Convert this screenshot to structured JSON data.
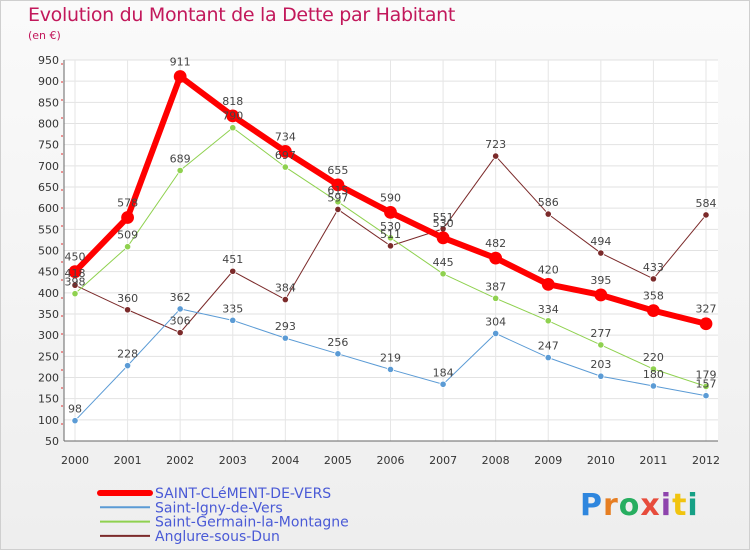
{
  "header": {
    "title": "Evolution du Montant de la Dette par Habitant",
    "unit": "(en €)"
  },
  "logo": {
    "text": "Proxiti",
    "colors": [
      "#2e86de",
      "#e67e22",
      "#27ae60",
      "#e74c3c",
      "#8e44ad",
      "#f1c40f",
      "#16a085"
    ]
  },
  "chart_data": {
    "type": "line",
    "title": "Evolution du Montant de la Dette par Habitant",
    "ylabel": "(en €)",
    "xlabel": "",
    "x": [
      "2000",
      "2001",
      "2002",
      "2003",
      "2004",
      "2005",
      "2006",
      "2007",
      "2008",
      "2009",
      "2010",
      "2011",
      "2012"
    ],
    "ylim": [
      50,
      950
    ],
    "yticks": [
      50,
      100,
      150,
      200,
      250,
      300,
      350,
      400,
      450,
      500,
      550,
      600,
      650,
      700,
      750,
      800,
      850,
      900,
      950
    ],
    "grid": true,
    "legend_position": "bottom-left",
    "series": [
      {
        "name": "Anglure-sous-Dun",
        "color": "#7b2a2a",
        "width": 1,
        "values": [
          418,
          360,
          306,
          451,
          384,
          597,
          511,
          551,
          723,
          586,
          494,
          433,
          584
        ],
        "labels": [
          "418",
          "360",
          "306",
          "451",
          "384",
          "597",
          "511",
          "551",
          "723",
          "586",
          "494",
          "433",
          "584"
        ]
      },
      {
        "name": "Saint-Igny-de-Vers",
        "color": "#5b9bd5",
        "width": 1,
        "values": [
          98,
          228,
          362,
          335,
          293,
          256,
          219,
          184,
          304,
          247,
          203,
          180,
          157
        ],
        "labels": [
          "98",
          "228",
          "362",
          "335",
          "293",
          "256",
          "219",
          "184",
          "304",
          "247",
          "203",
          "180",
          "157"
        ]
      },
      {
        "name": "Saint-Germain-la-Montagne",
        "color": "#8fd14f",
        "width": 1,
        "values": [
          398,
          509,
          689,
          790,
          697,
          615,
          530,
          445,
          387,
          334,
          277,
          220,
          179
        ],
        "labels": [
          "398",
          "509",
          "689",
          "790",
          "697",
          "615",
          "530",
          "445",
          "387",
          "334",
          "277",
          "220",
          "179"
        ]
      },
      {
        "name": "SAINT-CLéMENT-DE-VERS",
        "color": "#ff0000",
        "width": 6,
        "values": [
          450,
          578,
          911,
          818,
          734,
          655,
          590,
          530,
          482,
          420,
          395,
          358,
          327
        ],
        "labels": [
          "450",
          "578",
          "911",
          "818",
          "734",
          "655",
          "590",
          "530",
          "482",
          "420",
          "395",
          "358",
          "327"
        ]
      }
    ],
    "legend": [
      "SAINT-CLéMENT-DE-VERS",
      "Saint-Igny-de-Vers",
      "Saint-Germain-la-Montagne",
      "Anglure-sous-Dun"
    ]
  }
}
